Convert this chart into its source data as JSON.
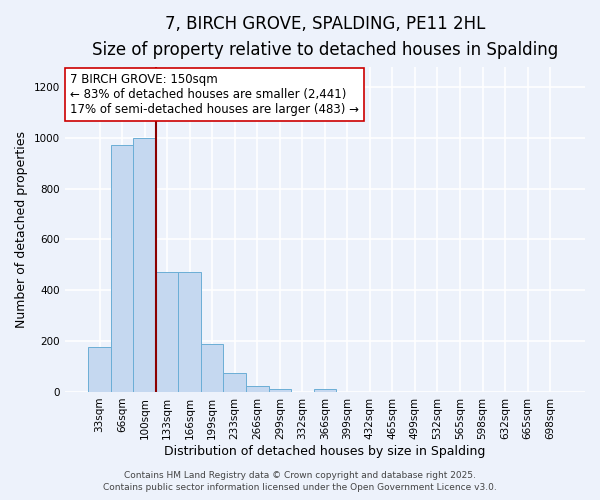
{
  "title": "7, BIRCH GROVE, SPALDING, PE11 2HL",
  "subtitle": "Size of property relative to detached houses in Spalding",
  "xlabel": "Distribution of detached houses by size in Spalding",
  "ylabel": "Number of detached properties",
  "bar_labels": [
    "33sqm",
    "66sqm",
    "100sqm",
    "133sqm",
    "166sqm",
    "199sqm",
    "233sqm",
    "266sqm",
    "299sqm",
    "332sqm",
    "366sqm",
    "399sqm",
    "432sqm",
    "465sqm",
    "499sqm",
    "532sqm",
    "565sqm",
    "598sqm",
    "632sqm",
    "665sqm",
    "698sqm"
  ],
  "bar_values": [
    175,
    970,
    1000,
    470,
    470,
    190,
    75,
    25,
    10,
    0,
    10,
    0,
    0,
    0,
    0,
    0,
    0,
    0,
    0,
    0,
    0
  ],
  "bar_color": "#c5d8f0",
  "bar_edge_color": "#6baed6",
  "ylim": [
    0,
    1280
  ],
  "yticks": [
    0,
    200,
    400,
    600,
    800,
    1000,
    1200
  ],
  "vline_pos": 2.5,
  "vline_color": "#8b0000",
  "annotation_title": "7 BIRCH GROVE: 150sqm",
  "annotation_line1": "← 83% of detached houses are smaller (2,441)",
  "annotation_line2": "17% of semi-detached houses are larger (483) →",
  "annotation_box_facecolor": "#ffffff",
  "annotation_box_edgecolor": "#cc0000",
  "footer1": "Contains HM Land Registry data © Crown copyright and database right 2025.",
  "footer2": "Contains public sector information licensed under the Open Government Licence v3.0.",
  "plot_bgcolor": "#edf2fb",
  "fig_bgcolor": "#edf2fb",
  "grid_color": "#ffffff",
  "title_fontsize": 12,
  "subtitle_fontsize": 10,
  "axis_label_fontsize": 9,
  "tick_fontsize": 7.5,
  "annotation_fontsize": 8.5,
  "footer_fontsize": 6.5
}
